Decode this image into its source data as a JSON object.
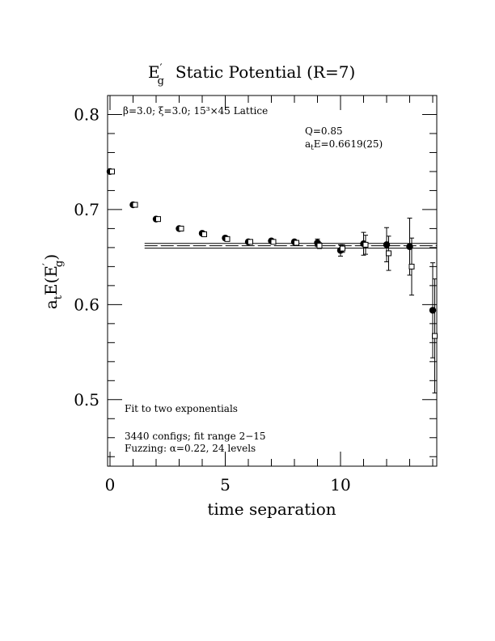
{
  "chart_data": {
    "type": "scatter",
    "title_base": "E",
    "title_sub": "g",
    "title_prime": "′",
    "title_rest": "Static Potential (R=7)",
    "xlabel": "time separation",
    "ylabel_parts": {
      "a": "a",
      "t": "t",
      "E": "E(E",
      "prime": "′",
      "g": "g",
      "close": ")"
    },
    "xlim": [
      0,
      14
    ],
    "ylim": [
      0.43,
      0.82
    ],
    "x_ticks": [
      0,
      5,
      10
    ],
    "y_ticks": [
      0.5,
      0.6,
      0.7,
      0.8
    ],
    "x_tick_labels": [
      "0",
      "5",
      "10"
    ],
    "y_tick_labels": [
      "0.5",
      "0.6",
      "0.7",
      "0.8"
    ],
    "annotations": {
      "lattice": "β=3.0; ξ=3.0; 15³×45 Lattice",
      "q": "Q=0.85",
      "ate_prefix": "a",
      "ate_sub": "t",
      "ate_rest": "E=0.6619(25)",
      "fit_label": "Fit to two exponentials",
      "configs": "3440 configs; fit range 2−15",
      "fuzzing": "Fuzzing: α=0.22, 24 levels"
    },
    "fit": {
      "value": 0.6619,
      "error": 0.0025,
      "x_start": 1.5,
      "x_end": 14
    },
    "series": [
      {
        "marker": "filled-circle",
        "points": [
          {
            "x": 0,
            "y": 0.74,
            "err": 0.001
          },
          {
            "x": 1,
            "y": 0.705,
            "err": 0.001
          },
          {
            "x": 2,
            "y": 0.69,
            "err": 0.0015
          },
          {
            "x": 3,
            "y": 0.68,
            "err": 0.0015
          },
          {
            "x": 4,
            "y": 0.675,
            "err": 0.002
          },
          {
            "x": 5,
            "y": 0.67,
            "err": 0.002
          },
          {
            "x": 6,
            "y": 0.666,
            "err": 0.002
          },
          {
            "x": 7,
            "y": 0.667,
            "err": 0.002
          },
          {
            "x": 8,
            "y": 0.666,
            "err": 0.002
          },
          {
            "x": 9,
            "y": 0.665,
            "err": 0.004
          },
          {
            "x": 10,
            "y": 0.657,
            "err": 0.006
          },
          {
            "x": 11,
            "y": 0.664,
            "err": 0.012
          },
          {
            "x": 12,
            "y": 0.663,
            "err": 0.018
          },
          {
            "x": 13,
            "y": 0.661,
            "err": 0.03
          },
          {
            "x": 14,
            "y": 0.594,
            "err": 0.05
          }
        ]
      },
      {
        "marker": "open-square",
        "points": [
          {
            "x": 0,
            "y": 0.74,
            "err": 0.001
          },
          {
            "x": 1,
            "y": 0.705,
            "err": 0.001
          },
          {
            "x": 2,
            "y": 0.69,
            "err": 0.0015
          },
          {
            "x": 3,
            "y": 0.68,
            "err": 0.0015
          },
          {
            "x": 4,
            "y": 0.674,
            "err": 0.002
          },
          {
            "x": 5,
            "y": 0.669,
            "err": 0.002
          },
          {
            "x": 6,
            "y": 0.666,
            "err": 0.002
          },
          {
            "x": 7,
            "y": 0.666,
            "err": 0.002
          },
          {
            "x": 8,
            "y": 0.665,
            "err": 0.002
          },
          {
            "x": 9,
            "y": 0.662,
            "err": 0.003
          },
          {
            "x": 10,
            "y": 0.659,
            "err": 0.004
          },
          {
            "x": 11,
            "y": 0.663,
            "err": 0.01
          },
          {
            "x": 12,
            "y": 0.654,
            "err": 0.018
          },
          {
            "x": 13,
            "y": 0.64,
            "err": 0.03
          },
          {
            "x": 14,
            "y": 0.567,
            "err": 0.06
          }
        ]
      }
    ]
  }
}
